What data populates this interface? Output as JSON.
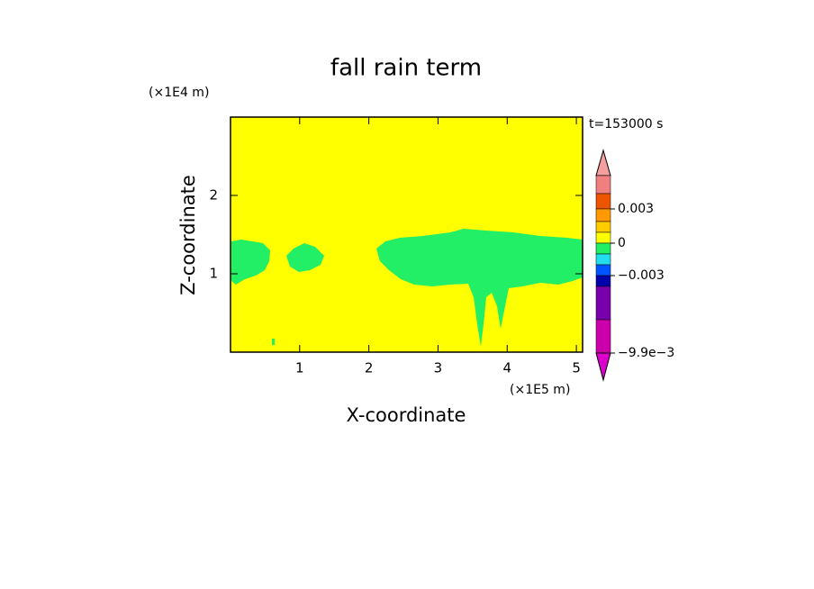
{
  "chart_data": {
    "type": "contour",
    "title": "fall rain term",
    "x_label": "X-coordinate",
    "y_label": "Z-coordinate",
    "x_unit": "(×1E5 m)",
    "y_unit": "(×1E4 m)",
    "time_label": "t=153000 s",
    "xlim": [
      0,
      5.09
    ],
    "ylim": [
      0,
      3.0
    ],
    "xticks": [
      1,
      2,
      3,
      4,
      5
    ],
    "yticks": [
      1,
      2
    ],
    "background_color": "#ffff00",
    "field_color": "#22ee66",
    "colorbar": {
      "colors": [
        "#f4a0a0",
        "#f08080",
        "#ee5500",
        "#ff9900",
        "#ffcc00",
        "#ffff00",
        "#22ee66",
        "#22ddee",
        "#0055ff",
        "#0000aa",
        "#7700aa",
        "#cc00aa",
        "#dd00cc"
      ],
      "ticks": [
        0.003,
        0,
        {
          "value": -0.003,
          "label": "−0.003"
        },
        {
          "value": -0.0099,
          "label": "−9.9e−3"
        }
      ]
    }
  }
}
